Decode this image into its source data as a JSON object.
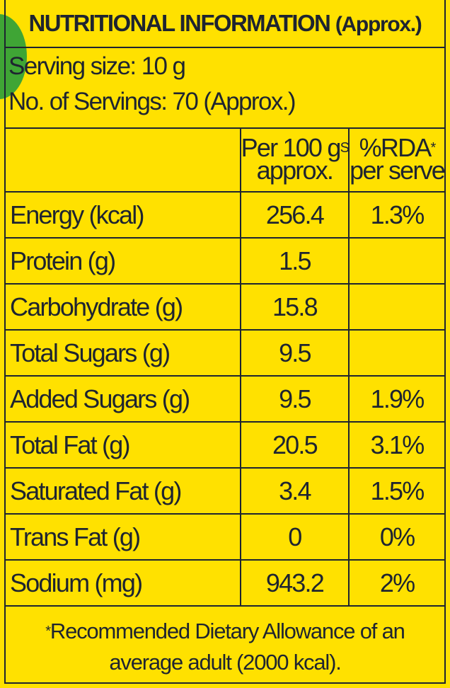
{
  "title": {
    "main": "NUTRITIONAL INFORMATION",
    "sub": "(Approx.)"
  },
  "serving": {
    "size_label": "Serving size:",
    "size_value": "10 g",
    "count_label": "No. of Servings:",
    "count_value": "70",
    "count_note": "(Approx.)"
  },
  "table": {
    "headers": {
      "col2_line1": "Per 100 g",
      "col2_line2": "approx.",
      "col2_mark": "S",
      "col3_line1": "%RDA",
      "col3_mark": "*",
      "col3_line2": "per serve"
    },
    "rows": [
      {
        "nutrient": "Energy (kcal)",
        "per100": "256.4",
        "rda": "1.3%"
      },
      {
        "nutrient": "Protein (g)",
        "per100": "1.5",
        "rda": ""
      },
      {
        "nutrient": "Carbohydrate (g)",
        "per100": "15.8",
        "rda": ""
      },
      {
        "nutrient": "Total Sugars (g)",
        "per100": "9.5",
        "rda": ""
      },
      {
        "nutrient": "Added Sugars (g)",
        "per100": "9.5",
        "rda": "1.9%"
      },
      {
        "nutrient": "Total Fat (g)",
        "per100": "20.5",
        "rda": "3.1%"
      },
      {
        "nutrient": "Saturated Fat (g)",
        "per100": "3.4",
        "rda": "1.5%"
      },
      {
        "nutrient": "Trans Fat (g)",
        "per100": "0",
        "rda": "0%"
      },
      {
        "nutrient": "Sodium (mg)",
        "per100": "943.2",
        "rda": "2%"
      }
    ]
  },
  "footer": {
    "mark": "*",
    "line1": "Recommended Dietary Allowance of an",
    "line2": "average adult (2000 kcal)."
  },
  "colors": {
    "background": "#FFE100",
    "ink": "#1E2430",
    "accent_green": "#3FA535"
  }
}
